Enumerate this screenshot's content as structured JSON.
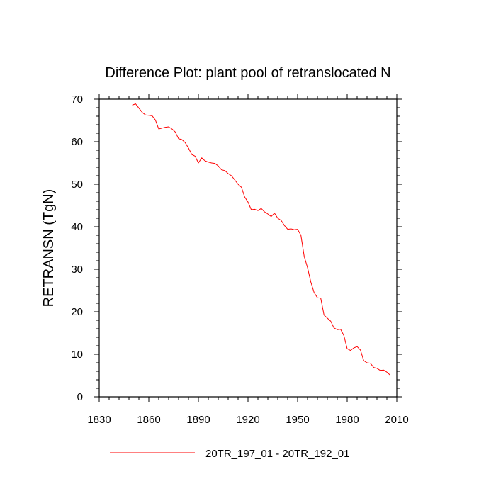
{
  "chart_data": {
    "type": "line",
    "title": "Difference Plot: plant pool of retranslocated N",
    "xlabel": "",
    "ylabel": "RETRANSN  (TgN)",
    "xlim": [
      1830,
      2010
    ],
    "ylim": [
      0,
      70
    ],
    "xticks": [
      1830,
      1860,
      1890,
      1920,
      1950,
      1980,
      2010
    ],
    "yticks": [
      0,
      10,
      20,
      30,
      40,
      50,
      60,
      70
    ],
    "grid": false,
    "legend_position": "bottom-center",
    "series": [
      {
        "name": "20TR_197_01 - 20TR_192_01",
        "color": "#ff0000",
        "x": [
          1850,
          1852,
          1854,
          1856,
          1858,
          1860,
          1862,
          1864,
          1866,
          1868,
          1870,
          1872,
          1874,
          1876,
          1878,
          1880,
          1882,
          1884,
          1886,
          1888,
          1890,
          1892,
          1894,
          1896,
          1898,
          1900,
          1902,
          1904,
          1906,
          1908,
          1910,
          1912,
          1914,
          1916,
          1918,
          1920,
          1922,
          1924,
          1926,
          1928,
          1930,
          1932,
          1934,
          1936,
          1938,
          1940,
          1942,
          1944,
          1946,
          1948,
          1950,
          1952,
          1954,
          1956,
          1958,
          1960,
          1962,
          1964,
          1966,
          1968,
          1970,
          1972,
          1974,
          1976,
          1978,
          1980,
          1982,
          1984,
          1986,
          1988,
          1990,
          1992,
          1994,
          1996,
          1998,
          2000,
          2002,
          2004,
          2006
        ],
        "values": [
          68.6,
          68.9,
          67.9,
          66.9,
          66.3,
          66.2,
          66.1,
          65.1,
          63.0,
          63.2,
          63.4,
          63.5,
          63.0,
          62.3,
          60.7,
          60.5,
          59.8,
          58.5,
          57.0,
          56.6,
          55.0,
          56.2,
          55.5,
          55.2,
          55.0,
          54.9,
          54.3,
          53.4,
          53.2,
          52.5,
          52.0,
          51.0,
          50.0,
          49.3,
          47.0,
          45.8,
          44.0,
          44.1,
          43.8,
          44.3,
          43.5,
          43.0,
          42.4,
          43.2,
          42.0,
          41.5,
          40.3,
          39.4,
          39.5,
          39.3,
          39.4,
          38.0,
          33.0,
          30.4,
          27.0,
          24.5,
          23.3,
          23.2,
          19.2,
          18.5,
          17.8,
          16.2,
          15.8,
          15.9,
          14.4,
          11.3,
          10.9,
          11.5,
          11.8,
          11.0,
          8.5,
          8.0,
          7.9,
          6.9,
          6.7,
          6.2,
          6.3,
          5.8,
          5.1
        ]
      }
    ]
  }
}
